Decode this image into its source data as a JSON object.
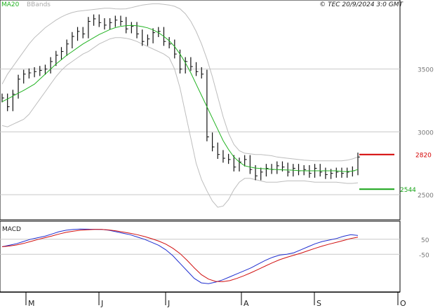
{
  "header": {
    "legend_ma": "MA20",
    "legend_bb": "BBands",
    "source": "© TEC 20/9/2024 3:0 GMT"
  },
  "colors": {
    "price": "#111111",
    "ma": "#21b321",
    "bbands": "#bdbdbd",
    "grid": "#c8c8c8",
    "resistance": "#d40000",
    "support": "#16a316",
    "macd": "#1f2ed0",
    "signal": "#d11010"
  },
  "chart_data": [
    {
      "type": "line",
      "title": "",
      "x_ticks": [
        "M",
        "J",
        "J",
        "A",
        "S",
        "O"
      ],
      "y_ticks": [
        "2500",
        "3000",
        "3500"
      ],
      "ylim": [
        2300,
        4050
      ],
      "series": [
        {
          "name": "MA20",
          "values": [
            3240,
            3262,
            3285,
            3308,
            3330,
            3355,
            3380,
            3420,
            3460,
            3500,
            3540,
            3575,
            3610,
            3640,
            3670,
            3700,
            3725,
            3750,
            3775,
            3795,
            3815,
            3830,
            3840,
            3846,
            3848,
            3845,
            3838,
            3828,
            3812,
            3790,
            3760,
            3725,
            3680,
            3620,
            3550,
            3470,
            3380,
            3290,
            3200,
            3110,
            3020,
            2930,
            2860,
            2800,
            2760,
            2730,
            2720,
            2712,
            2708,
            2706,
            2702,
            2700,
            2698,
            2696,
            2695,
            2692,
            2690,
            2690,
            2690,
            2690,
            2690,
            2690,
            2690,
            2685,
            2684,
            2688,
            2700
          ]
        },
        {
          "name": "BBands upper",
          "values": [
            3380,
            3460,
            3520,
            3580,
            3640,
            3700,
            3750,
            3790,
            3830,
            3860,
            3890,
            3915,
            3935,
            3950,
            3960,
            3965,
            3970,
            3975,
            3980,
            3985,
            3985,
            3980,
            3978,
            3980,
            3990,
            4000,
            4010,
            4015,
            4020,
            4020,
            4015,
            4010,
            4000,
            3980,
            3940,
            3880,
            3800,
            3700,
            3580,
            3440,
            3280,
            3120,
            2990,
            2900,
            2850,
            2830,
            2825,
            2820,
            2820,
            2815,
            2810,
            2800,
            2795,
            2790,
            2785,
            2780,
            2775,
            2772,
            2770,
            2770,
            2770,
            2770,
            2770,
            2770,
            2775,
            2785,
            2800
          ]
        },
        {
          "name": "BBands lower",
          "values": [
            3050,
            3040,
            3060,
            3080,
            3100,
            3140,
            3200,
            3260,
            3320,
            3380,
            3440,
            3490,
            3530,
            3560,
            3590,
            3620,
            3640,
            3670,
            3700,
            3720,
            3740,
            3750,
            3750,
            3745,
            3735,
            3720,
            3700,
            3680,
            3660,
            3640,
            3620,
            3590,
            3500,
            3350,
            3150,
            2950,
            2750,
            2620,
            2530,
            2450,
            2400,
            2410,
            2460,
            2540,
            2600,
            2630,
            2630,
            2620,
            2610,
            2600,
            2600,
            2600,
            2605,
            2610,
            2610,
            2610,
            2610,
            2605,
            2600,
            2600,
            2600,
            2600,
            2600,
            2595,
            2590,
            2590,
            2595
          ]
        },
        {
          "name": "Price",
          "values": [
            3270,
            3200,
            3300,
            3420,
            3460,
            3470,
            3480,
            3490,
            3500,
            3560,
            3610,
            3640,
            3700,
            3760,
            3800,
            3780,
            3880,
            3900,
            3870,
            3850,
            3870,
            3890,
            3880,
            3820,
            3840,
            3780,
            3720,
            3740,
            3790,
            3800,
            3720,
            3700,
            3620,
            3500,
            3560,
            3520,
            3480,
            3460,
            2960,
            2880,
            2820,
            2790,
            2780,
            2720,
            2760,
            2780,
            2700,
            2650,
            2680,
            2710,
            2700,
            2730,
            2720,
            2680,
            2710,
            2690,
            2700,
            2670,
            2710,
            2680,
            2660,
            2670,
            2680,
            2670,
            2680,
            2690,
            2800
          ]
        },
        {
          "name": "Resistance",
          "values": [
            2820
          ]
        },
        {
          "name": "Support",
          "values": [
            2544
          ]
        }
      ],
      "annotations": [
        "2820",
        "2544"
      ]
    },
    {
      "type": "line",
      "title": "MACD",
      "y_ticks": [
        "50",
        "-50"
      ],
      "ylim": [
        -300,
        170
      ],
      "series": [
        {
          "name": "MACD",
          "values": [
            0,
            10,
            20,
            35,
            50,
            60,
            70,
            85,
            100,
            110,
            115,
            118,
            117,
            116,
            115,
            110,
            100,
            90,
            80,
            65,
            50,
            30,
            10,
            -20,
            -60,
            -110,
            -160,
            -210,
            -240,
            -245,
            -235,
            -220,
            -200,
            -180,
            -160,
            -140,
            -115,
            -90,
            -70,
            -55,
            -50,
            -40,
            -20,
            0,
            20,
            35,
            45,
            55,
            70,
            80,
            75
          ]
        },
        {
          "name": "Signal",
          "values": [
            0,
            5,
            12,
            22,
            35,
            48,
            60,
            72,
            85,
            96,
            104,
            110,
            113,
            115,
            115,
            112,
            106,
            98,
            90,
            80,
            68,
            54,
            38,
            18,
            -10,
            -45,
            -90,
            -140,
            -185,
            -215,
            -230,
            -232,
            -225,
            -210,
            -192,
            -172,
            -150,
            -128,
            -106,
            -86,
            -70,
            -56,
            -42,
            -26,
            -10,
            5,
            18,
            30,
            42,
            55,
            64
          ]
        }
      ]
    }
  ]
}
